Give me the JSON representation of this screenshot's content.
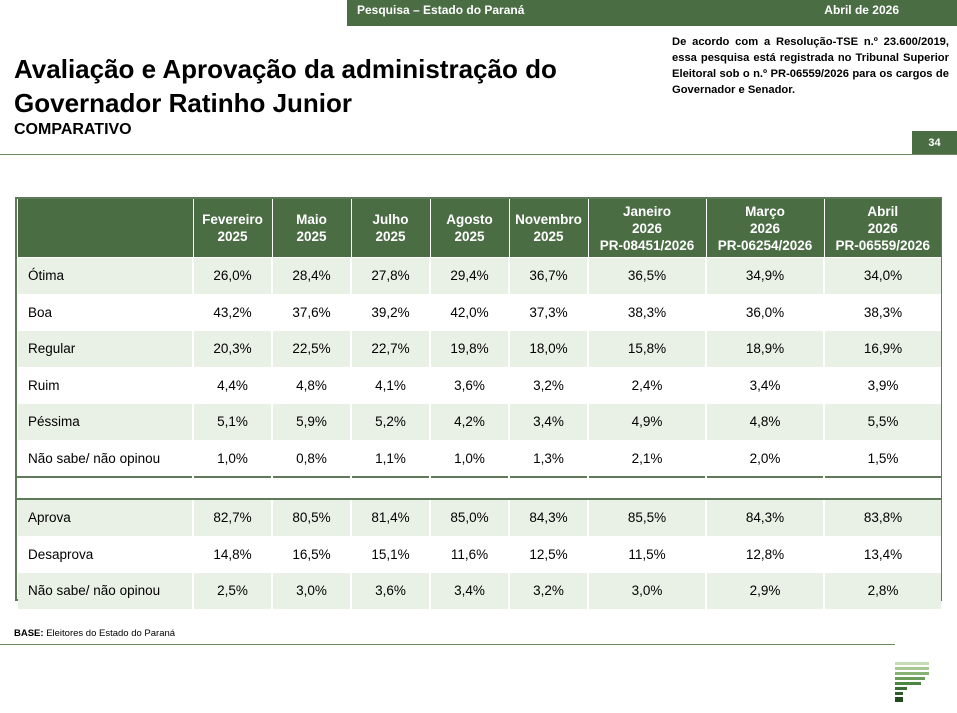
{
  "header": {
    "survey": "Pesquisa – Estado do Paraná",
    "date": "Abril de 2026",
    "page_number": "34"
  },
  "title_line1": "Avaliação e Aprovação da administração do",
  "title_line2": "Governador Ratinho Junior",
  "subtitle": "COMPARATIVO",
  "legal_note": "De acordo com a Resolução-TSE n.º 23.600/2019, essa pesquisa está registrada no Tribunal Superior Eleitoral sob o n.º PR-06559/2026 para os cargos de Governador e Senador.",
  "table": {
    "columns": [
      {
        "l1": "Fevereiro",
        "l2": "2025",
        "l3": ""
      },
      {
        "l1": "Maio",
        "l2": "2025",
        "l3": ""
      },
      {
        "l1": "Julho",
        "l2": "2025",
        "l3": ""
      },
      {
        "l1": "Agosto",
        "l2": "2025",
        "l3": ""
      },
      {
        "l1": "Novembro",
        "l2": "2025",
        "l3": ""
      },
      {
        "l1": "Janeiro",
        "l2": "2026",
        "l3": "PR-08451/2026"
      },
      {
        "l1": "Março",
        "l2": "2026",
        "l3": "PR-06254/2026"
      },
      {
        "l1": "Abril",
        "l2": "2026",
        "l3": "PR-06559/2026"
      }
    ],
    "evaluation_rows": [
      {
        "label": "Ótima",
        "values": [
          "26,0%",
          "28,4%",
          "27,8%",
          "29,4%",
          "36,7%",
          "36,5%",
          "34,9%",
          "34,0%"
        ]
      },
      {
        "label": "Boa",
        "values": [
          "43,2%",
          "37,6%",
          "39,2%",
          "42,0%",
          "37,3%",
          "38,3%",
          "36,0%",
          "38,3%"
        ]
      },
      {
        "label": "Regular",
        "values": [
          "20,3%",
          "22,5%",
          "22,7%",
          "19,8%",
          "18,0%",
          "15,8%",
          "18,9%",
          "16,9%"
        ]
      },
      {
        "label": "Ruim",
        "values": [
          "4,4%",
          "4,8%",
          "4,1%",
          "3,6%",
          "3,2%",
          "2,4%",
          "3,4%",
          "3,9%"
        ]
      },
      {
        "label": "Péssima",
        "values": [
          "5,1%",
          "5,9%",
          "5,2%",
          "4,2%",
          "3,4%",
          "4,9%",
          "4,8%",
          "5,5%"
        ]
      },
      {
        "label": "Não sabe/ não opinou",
        "values": [
          "1,0%",
          "0,8%",
          "1,1%",
          "1,0%",
          "1,3%",
          "2,1%",
          "2,0%",
          "1,5%"
        ]
      }
    ],
    "approval_rows": [
      {
        "label": "Aprova",
        "values": [
          "82,7%",
          "80,5%",
          "81,4%",
          "85,0%",
          "84,3%",
          "85,5%",
          "84,3%",
          "83,8%"
        ]
      },
      {
        "label": "Desaprova",
        "values": [
          "14,8%",
          "16,5%",
          "15,1%",
          "11,6%",
          "12,5%",
          "11,5%",
          "12,8%",
          "13,4%"
        ]
      },
      {
        "label": "Não sabe/ não opinou",
        "values": [
          "2,5%",
          "3,0%",
          "3,6%",
          "3,4%",
          "3,2%",
          "3,0%",
          "2,9%",
          "2,8%"
        ]
      }
    ]
  },
  "base_label": "BASE:",
  "base_text": "Eleitores do Estado do Paraná",
  "logo_icon": "institute-logo-icon",
  "colors": {
    "brand_green": "#4a6d44",
    "row_alt": "#e9f1e6"
  }
}
